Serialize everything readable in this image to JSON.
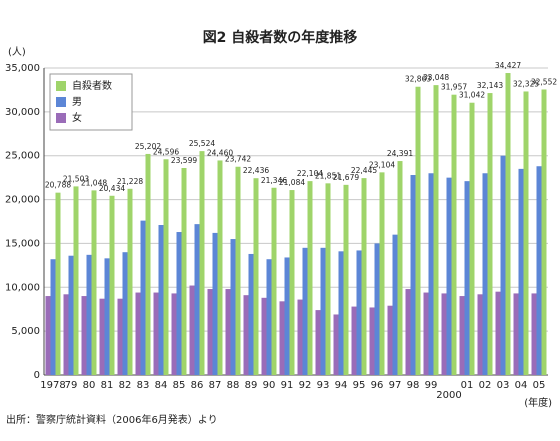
{
  "chart_data": {
    "type": "bar",
    "title": "図2 自殺者数の年度推移",
    "y_unit": "(人)",
    "x_unit": "(年度)",
    "source": "出所：警察庁統計資料（2006年6月発表）より",
    "categories": [
      "1978",
      "79",
      "80",
      "81",
      "82",
      "83",
      "84",
      "85",
      "86",
      "87",
      "88",
      "89",
      "90",
      "91",
      "92",
      "93",
      "94",
      "95",
      "96",
      "97",
      "98",
      "99",
      "2000",
      "01",
      "02",
      "03",
      "04",
      "05"
    ],
    "series": [
      {
        "name": "自殺者数",
        "color": "#9fd46a",
        "values": [
          20788,
          21503,
          21048,
          20434,
          21228,
          25202,
          24596,
          23599,
          25524,
          24460,
          23742,
          22436,
          21346,
          21084,
          22104,
          21851,
          21679,
          22445,
          23104,
          24391,
          32863,
          33048,
          31957,
          31042,
          32143,
          34427,
          32325,
          32552
        ],
        "value_labels": [
          "20,788",
          "21,503",
          "21,048",
          "20,434",
          "21,228",
          "25,202",
          "24,596",
          "23,599",
          "25,524",
          "24,460",
          "23,742",
          "22,436",
          "21,346",
          "21,084",
          "22,104",
          "21,851",
          "21,679",
          "22,445",
          "23,104",
          "24,391",
          "32,863",
          "33,048",
          "31,957",
          "31,042",
          "32,143",
          "34,427",
          "32,325",
          "32,552"
        ]
      },
      {
        "name": "男",
        "color": "#5c86d6",
        "values": [
          13200,
          13600,
          13700,
          13300,
          14000,
          17600,
          17100,
          16300,
          17200,
          16200,
          15500,
          13800,
          13200,
          13400,
          14500,
          14500,
          14100,
          14200,
          15000,
          16000,
          22800,
          23000,
          22500,
          22100,
          23000,
          25000,
          23500,
          23800
        ]
      },
      {
        "name": "女",
        "color": "#9a6cb8",
        "values": [
          9000,
          9200,
          9000,
          8700,
          8700,
          9400,
          9400,
          9300,
          10200,
          9800,
          9800,
          9100,
          8800,
          8400,
          8600,
          7400,
          6900,
          7800,
          7700,
          7900,
          9800,
          9400,
          9300,
          9000,
          9200,
          9500,
          9300,
          9300
        ]
      }
    ],
    "ylim": [
      0,
      35000
    ],
    "yticks": [
      {
        "value": 0,
        "label": "0"
      },
      {
        "value": 5000,
        "label": "5,000"
      },
      {
        "value": 10000,
        "label": "10,000"
      },
      {
        "value": 15000,
        "label": "15,000"
      },
      {
        "value": 20000,
        "label": "20,000"
      },
      {
        "value": 25000,
        "label": "25,000"
      },
      {
        "value": 30000,
        "label": "30,000"
      },
      {
        "value": 35000,
        "label": "35,000"
      }
    ],
    "grid": true,
    "legend": "upper left"
  }
}
